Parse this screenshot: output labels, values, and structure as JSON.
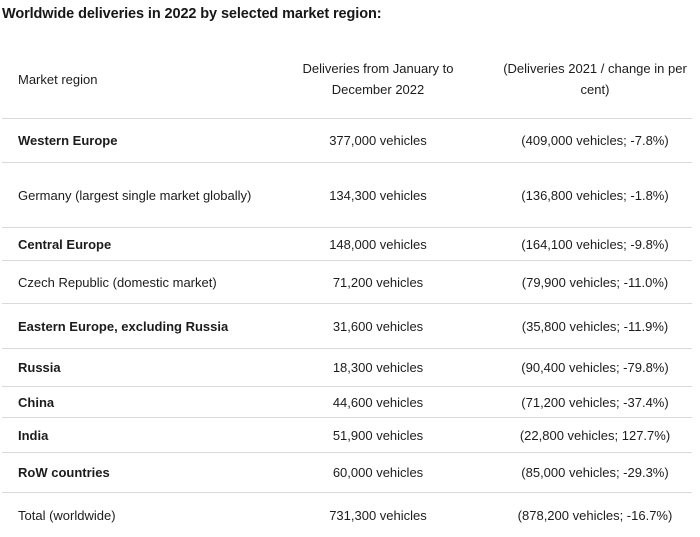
{
  "title": "Worldwide deliveries in 2022 by selected market region:",
  "table": {
    "columns": [
      "Market region",
      "Deliveries from January to December 2022",
      "(Deliveries 2021 / change in per cent)"
    ],
    "rows": [
      {
        "region": "Western Europe",
        "bold": true,
        "deliveries_2022": "377,000 vehicles",
        "prior_year": "(409,000 vehicles; -7.8%)"
      },
      {
        "region": "Germany (largest single market globally)",
        "bold": false,
        "deliveries_2022": "134,300 vehicles",
        "prior_year": "(136,800 vehicles; -1.8%)"
      },
      {
        "region": "Central Europe",
        "bold": true,
        "deliveries_2022": "148,000 vehicles",
        "prior_year": "(164,100 vehicles; -9.8%)"
      },
      {
        "region": "Czech Republic (domestic market)",
        "bold": false,
        "deliveries_2022": "71,200 vehicles",
        "prior_year": "(79,900 vehicles; -11.0%)"
      },
      {
        "region": "Eastern Europe, excluding Russia",
        "bold": true,
        "deliveries_2022": "31,600 vehicles",
        "prior_year": "(35,800 vehicles; -11.9%)"
      },
      {
        "region": "Russia",
        "bold": true,
        "deliveries_2022": "18,300 vehicles",
        "prior_year": "(90,400 vehicles; -79.8%)"
      },
      {
        "region": "China",
        "bold": true,
        "deliveries_2022": "44,600 vehicles",
        "prior_year": "(71,200 vehicles; -37.4%)"
      },
      {
        "region": "India",
        "bold": true,
        "deliveries_2022": "51,900 vehicles",
        "prior_year": "(22,800 vehicles; 127.7%)"
      },
      {
        "region": "RoW countries",
        "bold": true,
        "deliveries_2022": "60,000 vehicles",
        "prior_year": "(85,000 vehicles; -29.3%)"
      },
      {
        "region": "Total (worldwide)",
        "bold": false,
        "deliveries_2022": "731,300 vehicles",
        "prior_year": "(878,200 vehicles; -16.7%)"
      }
    ]
  },
  "chart_data": {
    "type": "table",
    "title": "Worldwide deliveries in 2022 by selected market region:",
    "columns": [
      "Market region",
      "Deliveries from January to December 2022",
      "(Deliveries 2021 / change in per cent)"
    ],
    "rows": [
      {
        "market_region": "Western Europe",
        "deliveries_2022_vehicles": 377000,
        "deliveries_2021_vehicles": 409000,
        "change_percent": -7.8
      },
      {
        "market_region": "Germany (largest single market globally)",
        "deliveries_2022_vehicles": 134300,
        "deliveries_2021_vehicles": 136800,
        "change_percent": -1.8
      },
      {
        "market_region": "Central Europe",
        "deliveries_2022_vehicles": 148000,
        "deliveries_2021_vehicles": 164100,
        "change_percent": -9.8
      },
      {
        "market_region": "Czech Republic (domestic market)",
        "deliveries_2022_vehicles": 71200,
        "deliveries_2021_vehicles": 79900,
        "change_percent": -11.0
      },
      {
        "market_region": "Eastern Europe, excluding Russia",
        "deliveries_2022_vehicles": 31600,
        "deliveries_2021_vehicles": 35800,
        "change_percent": -11.9
      },
      {
        "market_region": "Russia",
        "deliveries_2022_vehicles": 18300,
        "deliveries_2021_vehicles": 90400,
        "change_percent": -79.8
      },
      {
        "market_region": "China",
        "deliveries_2022_vehicles": 44600,
        "deliveries_2021_vehicles": 71200,
        "change_percent": -37.4
      },
      {
        "market_region": "India",
        "deliveries_2022_vehicles": 51900,
        "deliveries_2021_vehicles": 22800,
        "change_percent": 127.7
      },
      {
        "market_region": "RoW countries",
        "deliveries_2022_vehicles": 60000,
        "deliveries_2021_vehicles": 85000,
        "change_percent": -29.3
      },
      {
        "market_region": "Total (worldwide)",
        "deliveries_2022_vehicles": 731300,
        "deliveries_2021_vehicles": 878200,
        "change_percent": -16.7
      }
    ]
  },
  "colors": {
    "background": "#ffffff",
    "text": "#1c1c1c",
    "divider": "#d9d9d9"
  }
}
